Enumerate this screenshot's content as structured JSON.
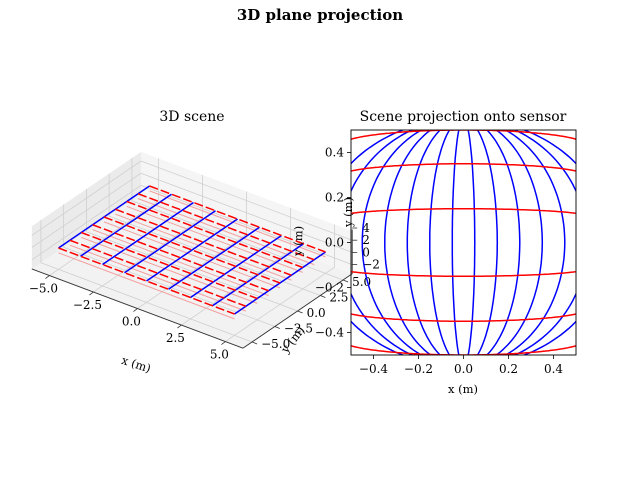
{
  "figure": {
    "suptitle": "3D plane projection"
  },
  "chart_data": [
    {
      "type": "3d-wireframe",
      "title": "3D scene",
      "xlabel": "x (m)",
      "ylabel": "y (m)",
      "zlabel": "y (m)",
      "xlim": [
        -6,
        6
      ],
      "ylim": [
        -6,
        6
      ],
      "zlim": [
        -3.5,
        3.5
      ],
      "x_ticks": [
        "−5.0",
        "−2.5",
        "0.0",
        "2.5",
        "5.0"
      ],
      "y_ticks": [
        "−5.0",
        "−2.5",
        "0.0",
        "2.5",
        "5.0"
      ],
      "z_ticks": [
        "−2",
        "0",
        "2",
        "4"
      ],
      "grid": true,
      "series": [
        {
          "color": "#0000ff",
          "lines_at": [
            -5,
            -3.75,
            -2.5,
            -1.25,
            0,
            1.25,
            2.5,
            3.75,
            5
          ],
          "direction": "constant x",
          "z": 0
        },
        {
          "color": "#ff0000",
          "lines_at": [
            -5,
            -3.75,
            -2.5,
            -1.25,
            0,
            1.25,
            2.5,
            3.75,
            5
          ],
          "direction": "constant y",
          "z": 0
        }
      ]
    },
    {
      "type": "line",
      "title": "Scene projection onto sensor",
      "xlabel": "x (m)",
      "ylabel": "y (m)",
      "xlim": [
        -0.5,
        0.5
      ],
      "ylim": [
        -0.5,
        0.5
      ],
      "x_ticks": [
        "−0.4",
        "−0.2",
        "0.0",
        "0.2",
        "0.4"
      ],
      "y_ticks": [
        "−0.4",
        "−0.2",
        "0.0",
        "0.2",
        "0.4"
      ],
      "grid": false,
      "series": [
        {
          "color": "#0000ff",
          "curve": "meridian",
          "half_widths": [
            0.05,
            0.15,
            0.25,
            0.35,
            0.45,
            0.55,
            0.65
          ]
        },
        {
          "color": "#ff0000",
          "curve": "parallel",
          "levels": [
            -0.62,
            -0.5,
            -0.35,
            -0.15,
            0.15,
            0.35,
            0.5,
            0.62
          ]
        }
      ]
    }
  ]
}
